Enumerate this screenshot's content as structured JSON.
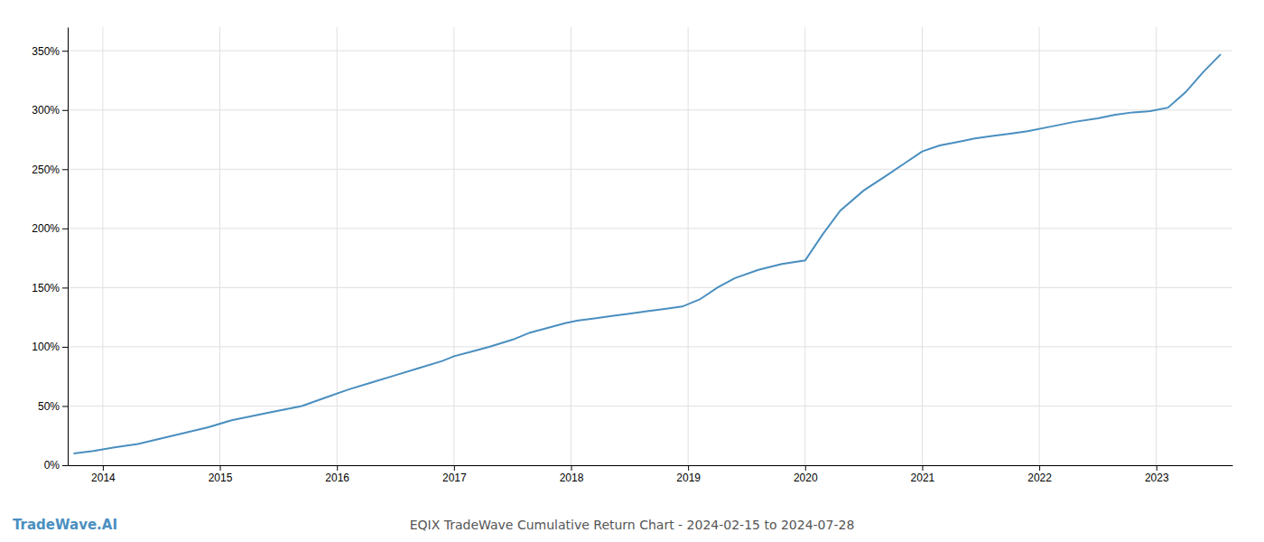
{
  "chart_data": {
    "type": "line",
    "title": "EQIX TradeWave Cumulative Return Chart - 2024-02-15 to 2024-07-28",
    "annotations": [
      "TradeWave.AI"
    ],
    "x": [
      2013.75,
      2013.92,
      2014.1,
      2014.3,
      2014.6,
      2014.9,
      2015.1,
      2015.4,
      2015.7,
      2015.9,
      2016.1,
      2016.3,
      2016.5,
      2016.7,
      2016.9,
      2017.0,
      2017.15,
      2017.3,
      2017.5,
      2017.65,
      2017.8,
      2017.95,
      2018.05,
      2018.2,
      2018.35,
      2018.5,
      2018.65,
      2018.8,
      2018.95,
      2019.1,
      2019.25,
      2019.4,
      2019.6,
      2019.8,
      2020.0,
      2020.15,
      2020.3,
      2020.5,
      2020.7,
      2020.85,
      2021.0,
      2021.15,
      2021.3,
      2021.45,
      2021.6,
      2021.75,
      2021.9,
      2022.1,
      2022.3,
      2022.5,
      2022.65,
      2022.8,
      2022.95,
      2023.1,
      2023.25,
      2023.4,
      2023.55
    ],
    "values": [
      10,
      12,
      15,
      18,
      25,
      32,
      38,
      44,
      50,
      57,
      64,
      70,
      76,
      82,
      88,
      92,
      96,
      100,
      106,
      112,
      116,
      120,
      122,
      124,
      126,
      128,
      130,
      132,
      134,
      140,
      150,
      158,
      165,
      170,
      173,
      195,
      215,
      232,
      245,
      255,
      265,
      270,
      273,
      276,
      278,
      280,
      282,
      286,
      290,
      293,
      296,
      298,
      299,
      302,
      315,
      332,
      347
    ],
    "color": "#4a8fc0",
    "xlim": [
      2013.7,
      2023.65
    ],
    "xticks": [
      2014,
      2015,
      2016,
      2017,
      2018,
      2019,
      2020,
      2021,
      2022,
      2023
    ],
    "ylim": [
      0,
      370
    ],
    "yticks": [
      {
        "value": 0,
        "label": "0%"
      },
      {
        "value": 50,
        "label": "50%"
      },
      {
        "value": 100,
        "label": "100%"
      },
      {
        "value": 150,
        "label": "150%"
      },
      {
        "value": 200,
        "label": "200%"
      },
      {
        "value": 250,
        "label": "250%"
      },
      {
        "value": 300,
        "label": "300%"
      },
      {
        "value": 350,
        "label": "350%"
      }
    ],
    "grid": true
  }
}
